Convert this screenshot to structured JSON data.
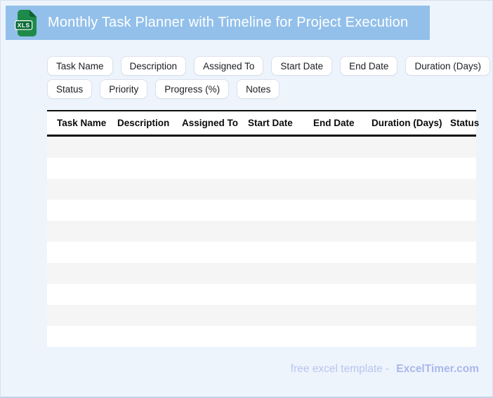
{
  "header": {
    "title": "Monthly Task Planner with Timeline for Project Execution",
    "file_badge": "XLS"
  },
  "chips": {
    "row1": [
      "Task Name",
      "Description",
      "Assigned To",
      "Start Date",
      "End Date",
      "Duration (Days)"
    ],
    "row2": [
      "Status",
      "Priority",
      "Progress (%)",
      "Notes"
    ]
  },
  "table": {
    "columns": [
      "Task Name",
      "Description",
      "Assigned To",
      "Start Date",
      "End Date",
      "Duration (Days)",
      "Status"
    ],
    "row_count": 10
  },
  "footer": {
    "prefix": "free excel template -",
    "brand": "ExcelTimer.com"
  },
  "colors": {
    "header_bg": "#92c0ea",
    "page_bg": "#eef4fc",
    "row_stripe": "#f5f5f5",
    "chip_border": "#dbe0eb",
    "footer_text": "#b9c4ef",
    "brand_text": "#a9b8ea",
    "icon_green": "#1d8a49",
    "icon_dark_green": "#0a6a36"
  }
}
